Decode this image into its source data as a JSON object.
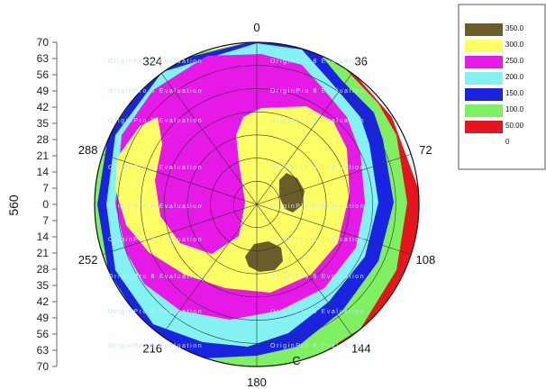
{
  "chart_data": {
    "type": "polar-contour",
    "ylabel": "560",
    "radial_ticks_upper": [
      "70",
      "63",
      "56",
      "49",
      "42",
      "35",
      "28",
      "21",
      "14",
      "7"
    ],
    "center_tick": "0",
    "radial_ticks_lower": [
      "7",
      "14",
      "21",
      "28",
      "35",
      "42",
      "49",
      "56",
      "63",
      "70"
    ],
    "radial_range": [
      0,
      70
    ],
    "angular_ticks": [
      {
        "angle": 0,
        "label": "0"
      },
      {
        "angle": 36,
        "label": "36"
      },
      {
        "angle": 72,
        "label": "72"
      },
      {
        "angle": 108,
        "label": "108"
      },
      {
        "angle": 144,
        "label": "144"
      },
      {
        "angle": 180,
        "label": "180"
      },
      {
        "angle": 216,
        "label": "216"
      },
      {
        "angle": 252,
        "label": "252"
      },
      {
        "angle": 288,
        "label": "288"
      },
      {
        "angle": 324,
        "label": "324"
      }
    ],
    "levels": [
      {
        "label": "350.0",
        "color": "#6b5d2a"
      },
      {
        "label": "300.0",
        "color": "#ffff66"
      },
      {
        "label": "250.0",
        "color": "#e619e6"
      },
      {
        "label": "200.0",
        "color": "#84f2f2"
      },
      {
        "label": "150.0",
        "color": "#1a24e0"
      },
      {
        "label": "100.0",
        "color": "#7ef062"
      },
      {
        "label": "50.00",
        "color": "#e6141e"
      },
      {
        "label": "0",
        "color": "#ffffff"
      }
    ],
    "legend_position": "top-right",
    "stray_label": "C",
    "watermark": "OriginPro 8 Evaluation"
  }
}
